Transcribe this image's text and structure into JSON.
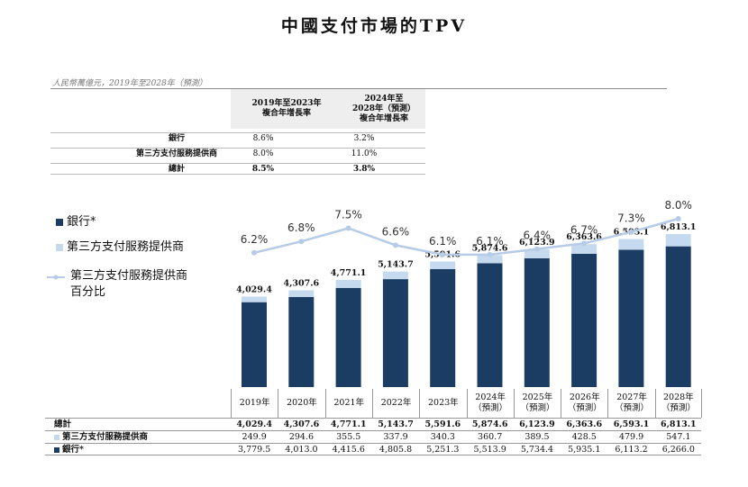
{
  "title": "中國支付市場的TPV",
  "unit_note": "人民幣萬億元，2019年至2028年（預測）",
  "cagr_table": {
    "headers": [
      "2019年至2023年\n複合年增長率",
      "2024年至\n2028年（預測）\n複合年增長率"
    ],
    "rows": [
      {
        "label": "銀行",
        "v1": "8.6%",
        "v2": "3.2%"
      },
      {
        "label": "第三方支付服務提供商",
        "v1": "8.0%",
        "v2": "11.0%"
      },
      {
        "label": "總計",
        "v1": "8.5%",
        "v2": "3.8%"
      }
    ]
  },
  "legend": {
    "bank": "銀行*",
    "third_party": "第三方支付服務提供商",
    "share_line_1": "第三方支付服務提供商",
    "share_line_2": "百分比"
  },
  "colors": {
    "bank": "#1b3d63",
    "third_party": "#c5d9ef",
    "share_line": "#b5cbe6"
  },
  "chart_data": {
    "type": "bar",
    "title": "中國支付市場的TPV",
    "categories": [
      "2019年",
      "2020年",
      "2021年",
      "2022年",
      "2023年",
      "2024年\n（預測）",
      "2025年\n（預測）",
      "2026年\n（預測）",
      "2027年\n（預測）",
      "2028年\n（預測）"
    ],
    "series": [
      {
        "name": "銀行*",
        "values": [
          3779.5,
          4013.0,
          4415.6,
          4805.8,
          5251.3,
          5513.9,
          5734.4,
          5935.1,
          6113.2,
          6266.0
        ]
      },
      {
        "name": "第三方支付服務提供商",
        "values": [
          249.9,
          294.6,
          355.5,
          337.9,
          340.3,
          360.7,
          389.5,
          428.5,
          479.9,
          547.1
        ]
      }
    ],
    "totals": [
      4029.4,
      4307.6,
      4771.1,
      5143.7,
      5591.6,
      5874.6,
      6123.9,
      6363.6,
      6593.1,
      6813.1
    ],
    "total_labels": [
      "4,029.4",
      "4,307.6",
      "4,771.1",
      "5,143.7",
      "5,591.6",
      "5,874.6",
      "6,123.9",
      "6,363.6",
      "6,593.1",
      "6,813.1"
    ],
    "line": {
      "name": "第三方支付服務提供商百分比",
      "values": [
        6.2,
        6.8,
        7.5,
        6.6,
        6.1,
        6.1,
        6.4,
        6.7,
        7.3,
        8.0
      ],
      "labels": [
        "6.2%",
        "6.8%",
        "7.5%",
        "6.6%",
        "6.1%",
        "6.1%",
        "6.4%",
        "6.7%",
        "7.3%",
        "8.0%"
      ]
    },
    "ylim": [
      0,
      7000
    ]
  },
  "data_table": {
    "rows": [
      {
        "label": "總計",
        "values": [
          "4,029.4",
          "4,307.6",
          "4,771.1",
          "5,143.7",
          "5,591.6",
          "5,874.6",
          "6,123.9",
          "6,363.6",
          "6,593.1",
          "6,813.1"
        ]
      },
      {
        "label": "第三方支付服務提供商",
        "values": [
          "249.9",
          "294.6",
          "355.5",
          "337.9",
          "340.3",
          "360.7",
          "389.5",
          "428.5",
          "479.9",
          "547.1"
        ]
      },
      {
        "label": "銀行*",
        "values": [
          "3,779.5",
          "4,013.0",
          "4,415.6",
          "4,805.8",
          "5,251.3",
          "5,513.9",
          "5,734.4",
          "5,935.1",
          "6,113.2",
          "6,266.0"
        ]
      }
    ]
  }
}
